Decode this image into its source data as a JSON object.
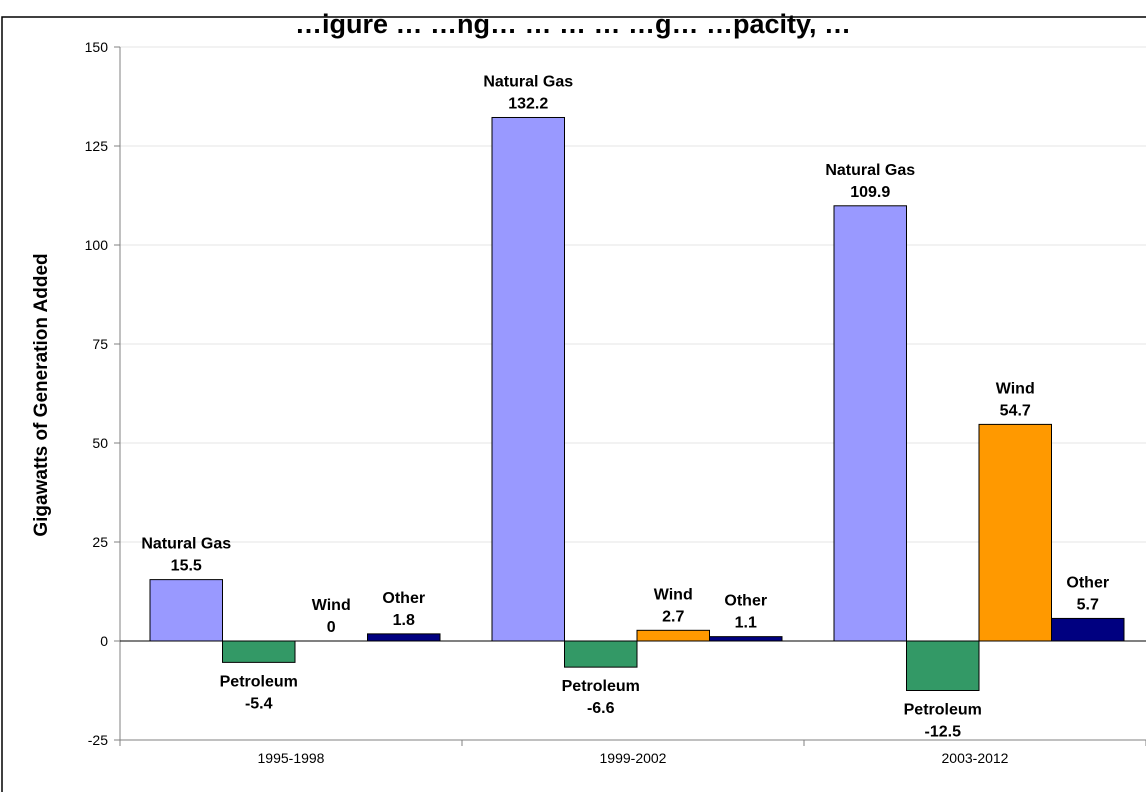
{
  "chart_data": {
    "type": "bar",
    "title": "…igure …  …ng… … … … …g… …pacity, …",
    "xlabel": "",
    "ylabel": "Gigawatts of Generation Added",
    "ylim": [
      -25,
      150
    ],
    "yticks": [
      150,
      125,
      100,
      75,
      50,
      25,
      0,
      -25
    ],
    "grid": true,
    "legend": "none",
    "categories": [
      "1995-1998",
      "1999-2002",
      "2003-2012"
    ],
    "series": [
      {
        "name": "Natural Gas",
        "color": "#9999FF",
        "values": [
          15.5,
          132.2,
          109.9
        ],
        "value_labels": [
          "15.5",
          "132.2",
          "109.9"
        ]
      },
      {
        "name": "Petroleum",
        "color": "#339966",
        "values": [
          -5.4,
          -6.6,
          -12.5
        ],
        "value_labels": [
          "-5.4",
          "-6.6",
          "-12.5"
        ]
      },
      {
        "name": "Wind",
        "color": "#FF9900",
        "values": [
          0,
          2.7,
          54.7
        ],
        "value_labels": [
          "0",
          "2.7",
          "54.7"
        ]
      },
      {
        "name": "Other",
        "color": "#000080",
        "values": [
          1.8,
          1.1,
          5.7
        ],
        "value_labels": [
          "1.8",
          "1.1",
          "5.7"
        ]
      }
    ]
  }
}
